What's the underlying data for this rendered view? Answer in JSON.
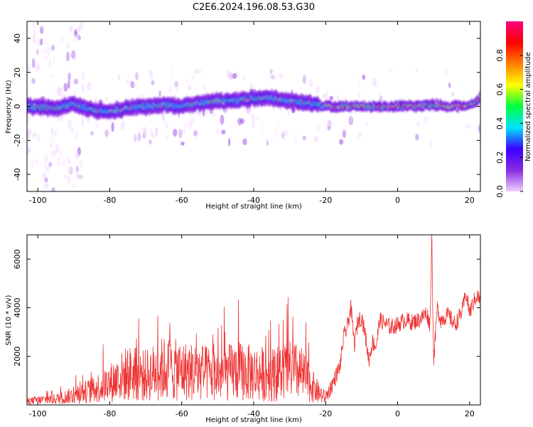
{
  "title": "C2E6.2024.196.08.53.G30",
  "colors": {
    "snr_line": "#ee3333",
    "colormap": [
      "#f0d0ff",
      "#8a2be2",
      "#3a00ff",
      "#00e5ff",
      "#00ff40",
      "#ffff00",
      "#ff7f00",
      "#ff0000",
      "#ff0080"
    ]
  },
  "chart_data": [
    {
      "type": "heatmap",
      "xlabel": "Height of straight line (km)",
      "ylabel": "Frequency (Hz)",
      "xlim": [
        -103,
        23
      ],
      "ylim": [
        -50,
        50
      ],
      "x_ticks": [
        -100,
        -80,
        -60,
        -40,
        -20,
        0,
        20
      ],
      "y_ticks": [
        -40,
        -20,
        0,
        20,
        40
      ],
      "grid": false,
      "colorbar": {
        "label": "Normalized spectral amplitude",
        "range": [
          0,
          1
        ],
        "ticks": [
          "0.0",
          "0.2",
          "0.4",
          "0.6",
          "0.8"
        ],
        "tick_values": [
          0,
          0.2,
          0.4,
          0.6,
          0.8
        ]
      },
      "ridge": [
        {
          "x": -103,
          "y": 0
        },
        {
          "x": -95,
          "y": -1
        },
        {
          "x": -90,
          "y": 1
        },
        {
          "x": -85,
          "y": -2
        },
        {
          "x": -80,
          "y": -3
        },
        {
          "x": -75,
          "y": -1
        },
        {
          "x": -70,
          "y": 0
        },
        {
          "x": -65,
          "y": 1
        },
        {
          "x": -60,
          "y": 0
        },
        {
          "x": -55,
          "y": 2
        },
        {
          "x": -50,
          "y": 3
        },
        {
          "x": -45,
          "y": 3
        },
        {
          "x": -40,
          "y": 5
        },
        {
          "x": -35,
          "y": 5
        },
        {
          "x": -30,
          "y": 3
        },
        {
          "x": -25,
          "y": 2
        },
        {
          "x": -20,
          "y": 0
        },
        {
          "x": -15,
          "y": 0
        },
        {
          "x": -10,
          "y": 0
        },
        {
          "x": -5,
          "y": 0
        },
        {
          "x": 0,
          "y": 0
        },
        {
          "x": 5,
          "y": 0
        },
        {
          "x": 10,
          "y": 1
        },
        {
          "x": 15,
          "y": 0
        },
        {
          "x": 20,
          "y": 0
        },
        {
          "x": 23,
          "y": 5
        }
      ]
    },
    {
      "type": "line",
      "xlabel": "Height of straight line (km)",
      "ylabel": "SNR (10 * v/v)",
      "xlim": [
        -103,
        23
      ],
      "ylim": [
        0,
        7000
      ],
      "x_ticks": [
        -100,
        -80,
        -60,
        -40,
        -20,
        0,
        20
      ],
      "y_ticks": [
        2000,
        4000,
        6000
      ],
      "grid": false,
      "series": [
        {
          "x": [
            -103,
            -100,
            -95,
            -90,
            -85,
            -80,
            -75,
            -70,
            -65,
            -60,
            -55,
            -50,
            -45,
            -40,
            -35,
            -30,
            -27,
            -25,
            -22,
            -20,
            -18,
            -16,
            -15,
            -14,
            -13,
            -12,
            -11,
            -10,
            -9,
            -8,
            -7,
            -6,
            -5,
            -3,
            -2,
            0,
            2,
            4,
            6,
            8,
            9,
            9.5,
            10,
            11,
            12,
            14,
            16,
            18,
            19,
            20,
            21,
            22,
            23
          ],
          "y": [
            150,
            200,
            250,
            400,
            600,
            900,
            1300,
            1200,
            1500,
            1400,
            1350,
            1200,
            1400,
            1300,
            1250,
            1400,
            1300,
            1000,
            500,
            300,
            900,
            1600,
            2800,
            3200,
            4000,
            2500,
            3500,
            3600,
            2900,
            1800,
            2600,
            2400,
            3500,
            3300,
            3200,
            3300,
            3500,
            3400,
            3500,
            3800,
            3300,
            6900,
            1800,
            4000,
            3500,
            3700,
            3300,
            3900,
            4600,
            3800,
            4200,
            4500,
            4300
          ]
        }
      ]
    }
  ]
}
